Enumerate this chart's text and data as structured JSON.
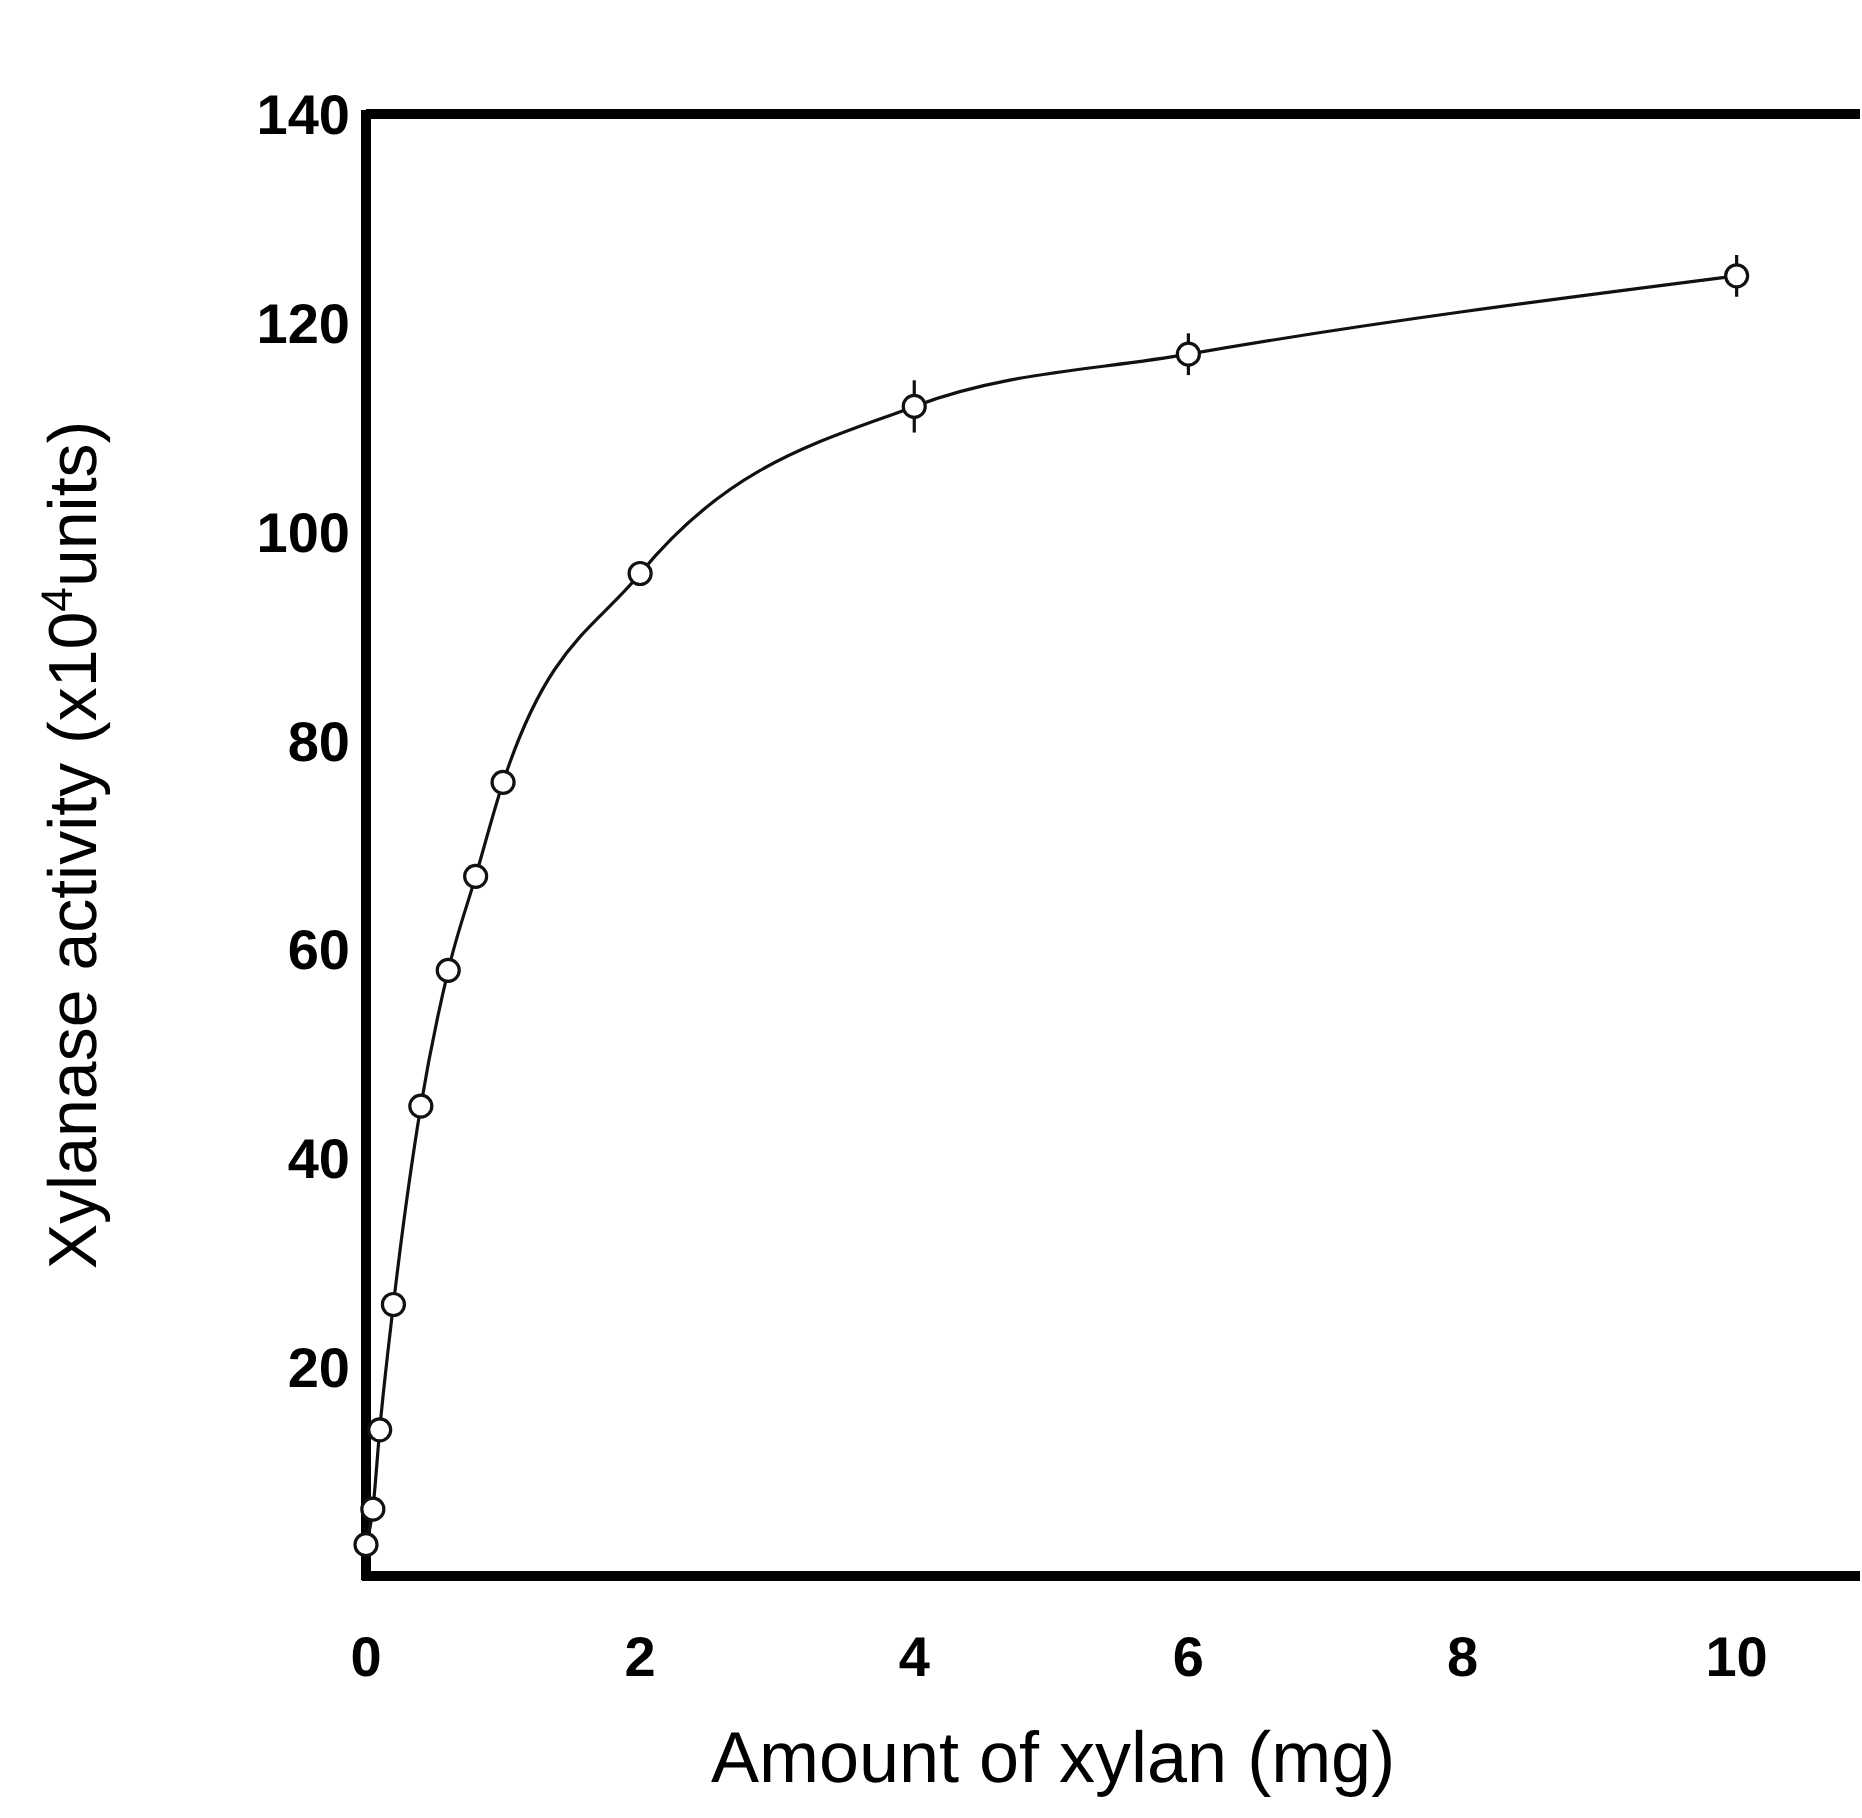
{
  "chart_data": {
    "type": "line",
    "xlabel": "Amount of xylan (mg)",
    "ylabel": "Xylanase activity (x10$^{4}$units)",
    "x": [
      0,
      0.05,
      0.1,
      0.2,
      0.4,
      0.6,
      0.8,
      1.0,
      2.0,
      4.0,
      6.0,
      10.0
    ],
    "series": [
      {
        "color": "#111111",
        "values": [
          3,
          6.4,
          14,
          26,
          45,
          58,
          67,
          76,
          96,
          112,
          117,
          124.5
        ],
        "errors": [
          null,
          null,
          null,
          null,
          null,
          null,
          null,
          null,
          null,
          2.5,
          2,
          2
        ]
      }
    ],
    "xlim": [
      0,
      10.9
    ],
    "xticks": [
      0,
      2,
      4,
      6,
      8,
      10
    ],
    "ylim": [
      0,
      140
    ],
    "yticks": [
      20,
      40,
      60,
      80,
      100,
      120,
      140
    ],
    "marker": "circle",
    "line_style": "solid"
  }
}
